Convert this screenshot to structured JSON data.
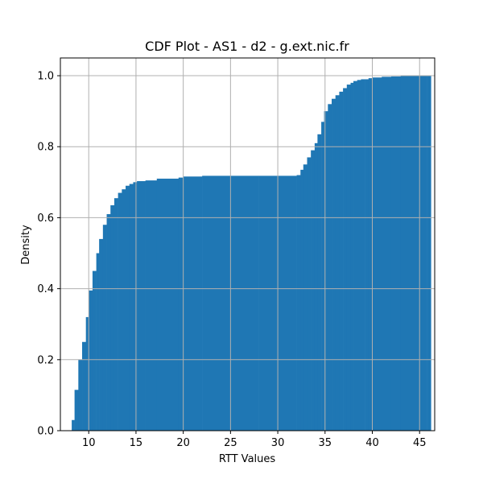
{
  "chart_data": {
    "type": "bar",
    "title": "CDF Plot - AS1 - d2 - g.ext.nic.fr",
    "xlabel": "RTT Values",
    "ylabel": "Density",
    "xlim": [
      7.0,
      46.6
    ],
    "ylim": [
      0.0,
      1.05
    ],
    "grid": true,
    "bar_color": "#1f77b4",
    "x_ticks": [
      10,
      15,
      20,
      25,
      30,
      35,
      40,
      45
    ],
    "y_ticks": [
      0.0,
      0.2,
      0.4,
      0.6,
      0.8,
      1.0
    ],
    "x_tick_labels": [
      "10",
      "15",
      "20",
      "25",
      "30",
      "35",
      "40",
      "45"
    ],
    "y_tick_labels": [
      "0.0",
      "0.2",
      "0.4",
      "0.6",
      "0.8",
      "1.0"
    ],
    "cdf_points": [
      [
        8.2,
        0.03
      ],
      [
        8.5,
        0.115
      ],
      [
        8.9,
        0.2
      ],
      [
        9.3,
        0.25
      ],
      [
        9.7,
        0.32
      ],
      [
        10.0,
        0.395
      ],
      [
        10.4,
        0.45
      ],
      [
        10.8,
        0.5
      ],
      [
        11.1,
        0.54
      ],
      [
        11.5,
        0.58
      ],
      [
        11.9,
        0.61
      ],
      [
        12.3,
        0.635
      ],
      [
        12.7,
        0.655
      ],
      [
        13.1,
        0.67
      ],
      [
        13.5,
        0.68
      ],
      [
        13.9,
        0.69
      ],
      [
        14.3,
        0.695
      ],
      [
        14.7,
        0.7
      ],
      [
        15.1,
        0.703
      ],
      [
        16.0,
        0.705
      ],
      [
        17.2,
        0.71
      ],
      [
        19.5,
        0.713
      ],
      [
        20.0,
        0.716
      ],
      [
        22.0,
        0.718
      ],
      [
        25.0,
        0.718
      ],
      [
        28.0,
        0.718
      ],
      [
        32.0,
        0.72
      ],
      [
        32.4,
        0.735
      ],
      [
        32.7,
        0.75
      ],
      [
        33.1,
        0.77
      ],
      [
        33.5,
        0.79
      ],
      [
        33.9,
        0.81
      ],
      [
        34.2,
        0.835
      ],
      [
        34.6,
        0.87
      ],
      [
        34.9,
        0.9
      ],
      [
        35.3,
        0.92
      ],
      [
        35.7,
        0.935
      ],
      [
        36.1,
        0.945
      ],
      [
        36.5,
        0.955
      ],
      [
        36.9,
        0.965
      ],
      [
        37.3,
        0.975
      ],
      [
        37.7,
        0.98
      ],
      [
        38.0,
        0.985
      ],
      [
        38.4,
        0.988
      ],
      [
        38.8,
        0.99
      ],
      [
        39.2,
        0.99
      ],
      [
        39.6,
        0.993
      ],
      [
        40.0,
        0.995
      ],
      [
        41.0,
        0.997
      ],
      [
        42.0,
        0.998
      ],
      [
        43.0,
        0.999
      ],
      [
        44.5,
        1.0
      ],
      [
        45.8,
        1.0
      ]
    ]
  }
}
